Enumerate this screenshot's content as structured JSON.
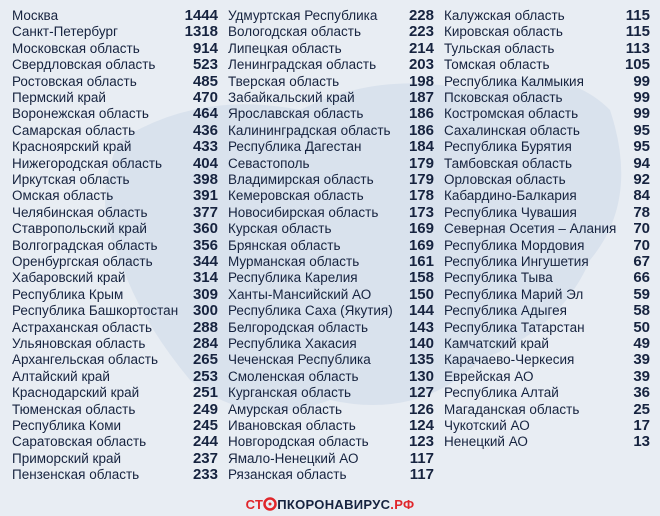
{
  "table": {
    "columns": [
      [
        [
          "Москва",
          "1444"
        ],
        [
          "Санкт-Петербург",
          "1318"
        ],
        [
          "Московская область",
          "914"
        ],
        [
          "Свердловская область",
          "523"
        ],
        [
          "Ростовская область",
          "485"
        ],
        [
          "Пермский край",
          "470"
        ],
        [
          "Воронежская область",
          "464"
        ],
        [
          "Самарская область",
          "436"
        ],
        [
          "Красноярский край",
          "433"
        ],
        [
          "Нижегородская область",
          "404"
        ],
        [
          "Иркутская область",
          "398"
        ],
        [
          "Омская область",
          "391"
        ],
        [
          "Челябинская область",
          "377"
        ],
        [
          "Ставропольский край",
          "360"
        ],
        [
          "Волгоградская область",
          "356"
        ],
        [
          "Оренбургская область",
          "344"
        ],
        [
          "Хабаровский край",
          "314"
        ],
        [
          "Республика Крым",
          "309"
        ],
        [
          "Республика Башкортостан",
          "300"
        ],
        [
          "Астраханская область",
          "288"
        ],
        [
          "Ульяновская область",
          "284"
        ],
        [
          "Архангельская область",
          "265"
        ],
        [
          "Алтайский край",
          "253"
        ],
        [
          "Краснодарский край",
          "251"
        ],
        [
          "Тюменская область",
          "249"
        ],
        [
          "Республика Коми",
          "245"
        ],
        [
          "Саратовская область",
          "244"
        ],
        [
          "Приморский край",
          "237"
        ],
        [
          "Пензенская область",
          "233"
        ]
      ],
      [
        [
          "Удмуртская Республика",
          "228"
        ],
        [
          "Вологодская область",
          "223"
        ],
        [
          "Липецкая область",
          "214"
        ],
        [
          "Ленинградская область",
          "203"
        ],
        [
          "Тверская область",
          "198"
        ],
        [
          "Забайкальский край",
          "187"
        ],
        [
          "Ярославская область",
          "186"
        ],
        [
          "Калининградская область",
          "186"
        ],
        [
          "Республика Дагестан",
          "184"
        ],
        [
          "Севастополь",
          "179"
        ],
        [
          "Владимирская область",
          "179"
        ],
        [
          "Кемеровская область",
          "178"
        ],
        [
          "Новосибирская область",
          "173"
        ],
        [
          "Курская область",
          "169"
        ],
        [
          "Брянская область",
          "169"
        ],
        [
          "Мурманская область",
          "161"
        ],
        [
          "Республика Карелия",
          "158"
        ],
        [
          "Ханты-Мансийский АО",
          "150"
        ],
        [
          "Республика Саха (Якутия)",
          "144"
        ],
        [
          "Белгородская область",
          "143"
        ],
        [
          "Республика Хакасия",
          "140"
        ],
        [
          "Чеченская Республика",
          "135"
        ],
        [
          "Смоленская область",
          "130"
        ],
        [
          "Курганская область",
          "127"
        ],
        [
          "Амурская область",
          "126"
        ],
        [
          "Ивановская область",
          "124"
        ],
        [
          "Новгородская область",
          "123"
        ],
        [
          "Ямало-Ненецкий АО",
          "117"
        ],
        [
          "Рязанская область",
          "117"
        ]
      ],
      [
        [
          "Калужская область",
          "115"
        ],
        [
          "Кировская область",
          "115"
        ],
        [
          "Тульская область",
          "113"
        ],
        [
          "Томская область",
          "105"
        ],
        [
          "Республика Калмыкия",
          "99"
        ],
        [
          "Псковская область",
          "99"
        ],
        [
          "Костромская область",
          "99"
        ],
        [
          "Сахалинская область",
          "95"
        ],
        [
          "Республика Бурятия",
          "95"
        ],
        [
          "Тамбовская область",
          "94"
        ],
        [
          "Орловская область",
          "92"
        ],
        [
          "Кабардино-Балкария",
          "84"
        ],
        [
          "Республика Чувашия",
          "78"
        ],
        [
          "Северная Осетия – Алания",
          "70"
        ],
        [
          "Республика Мордовия",
          "70"
        ],
        [
          "Республика Ингушетия",
          "67"
        ],
        [
          "Республика Тыва",
          "66"
        ],
        [
          "Республика Марий Эл",
          "59"
        ],
        [
          "Республика Адыгея",
          "58"
        ],
        [
          "Республика Татарстан",
          "50"
        ],
        [
          "Камчатский край",
          "49"
        ],
        [
          "Карачаево-Черкесия",
          "39"
        ],
        [
          "Еврейская АО",
          "39"
        ],
        [
          "Республика Алтай",
          "36"
        ],
        [
          "Магаданская область",
          "25"
        ],
        [
          "Чукотский АО",
          "17"
        ],
        [
          "Ненецкий АО",
          "13"
        ]
      ]
    ]
  },
  "footer": {
    "start": "СТ",
    "middle": "ПКОРОНАВИРУС",
    "end": ".РФ"
  }
}
